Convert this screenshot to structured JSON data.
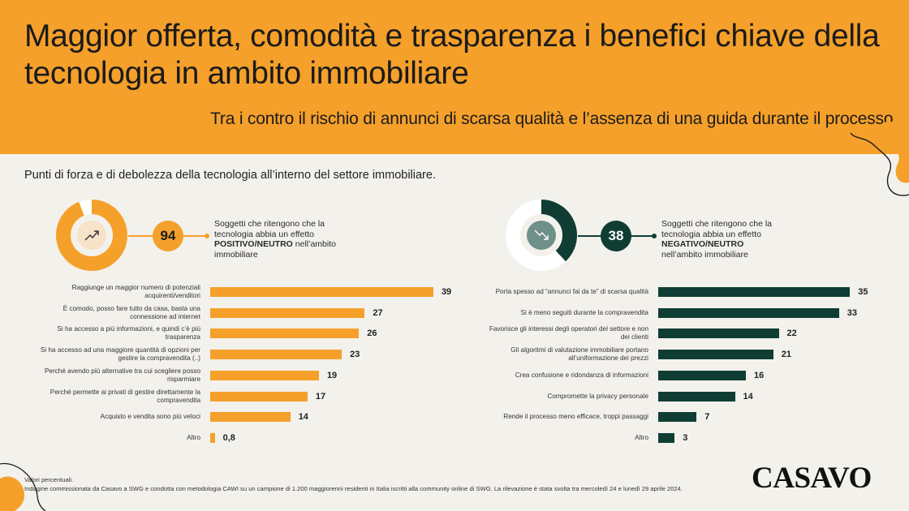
{
  "header": {
    "title": "Maggior offerta, comodità e trasparenza i benefici chiave della tecnologia in ambito immobiliare",
    "subtitle": "Tra i contro il rischio di annunci di scarsa qualità e l’assenza di una guida durante il processo."
  },
  "section_title": "Punti di forza e di debolezza della tecnologia all’interno del settore immobiliare.",
  "colors": {
    "orange": "#f5a02a",
    "dark_green": "#0f3d33",
    "background": "#f3f1ec",
    "donut_track": "#ffffff"
  },
  "positive": {
    "stat_value": "94",
    "stat_text_1": "Soggetti che ritengono che la tecnologia abbia un effetto ",
    "stat_text_bold": "POSITIVO/NEUTRO",
    "stat_text_2": " nell’ambito immobiliare",
    "icon": "trend-up-icon"
  },
  "negative": {
    "stat_value": "38",
    "stat_text_1": "Soggetti che ritengono che la tecnologia abbia un effetto ",
    "stat_text_bold": "NEGATIVO/NEUTRO",
    "stat_text_2": " nell’ambito immobiliare",
    "icon": "trend-down-icon"
  },
  "chart_data": [
    {
      "type": "bar",
      "orientation": "horizontal",
      "color": "#f5a02a",
      "donut_percent": 94,
      "categories": [
        "Raggiunge un maggior numero di potenziali acquirenti/venditori",
        "È comodo, posso fare tutto da casa, basta una connessione ad internet",
        "Si ha accesso a più informazioni, e quindi c’è più trasparenza",
        "Si ha accesso ad una maggiore quantità di opzioni per gestire la compravendita (..)",
        "Perché avendo più alternative tra cui scegliere posso risparmiare",
        "Perché permette ai privati di gestire direttamente la compravendita",
        "Acquisto e vendita sono più veloci",
        "Altro"
      ],
      "values": [
        39,
        27,
        26,
        23,
        19,
        17,
        14,
        0.8
      ],
      "value_labels": [
        "39",
        "27",
        "26",
        "23",
        "19",
        "17",
        "14",
        "0,8"
      ],
      "xlim": [
        0,
        40
      ]
    },
    {
      "type": "bar",
      "orientation": "horizontal",
      "color": "#0f3d33",
      "donut_percent": 38,
      "categories": [
        "Porta spesso ad “annunci fai da te” di scarsa qualità",
        "Si è meno seguiti durante la compravendita",
        "Favorisce gli interessi degli operatori del settore e non dei clienti",
        "Gli algoritmi di valutazione immobiliare portano all’uniformazione dei prezzi",
        "Crea confusione e ridondanza di informazioni",
        "Compromette la privacy personale",
        "Rende il processo meno efficace, troppi passaggi",
        "Altro"
      ],
      "values": [
        35,
        33,
        22,
        21,
        16,
        14,
        7,
        3
      ],
      "value_labels": [
        "35",
        "33",
        "22",
        "21",
        "16",
        "14",
        "7",
        "3"
      ],
      "xlim": [
        0,
        40
      ]
    }
  ],
  "footer": {
    "note_line1": "Valori percentuali.",
    "note_line2": "Indagine commissionata da Casavo a SWG e condotta con metodologia CAWI  su un campione di 1.200 maggiorenni residenti in Italia iscritti alla community online di SWG. La rilevazione è stata svolta tra mercoledì 24 e lunedì 29 aprile 2024.",
    "logo": "CASAVO"
  }
}
